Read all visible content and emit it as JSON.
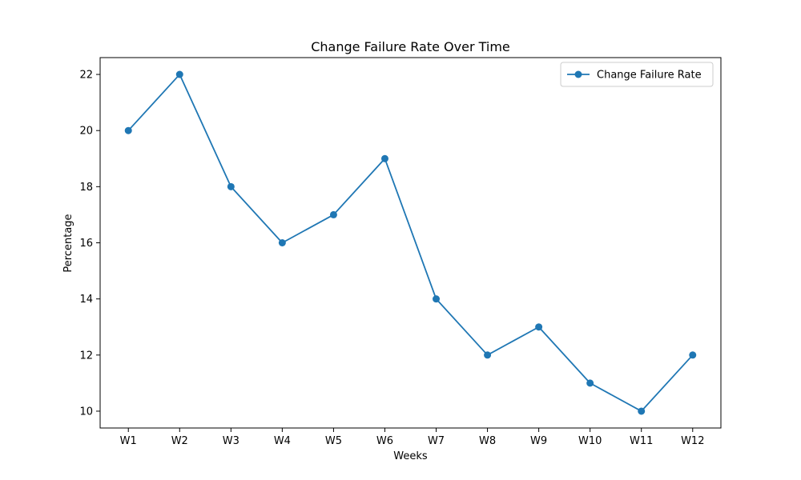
{
  "chart_data": {
    "type": "line",
    "title": "Change Failure Rate Over Time",
    "xlabel": "Weeks",
    "ylabel": "Percentage",
    "categories": [
      "W1",
      "W2",
      "W3",
      "W4",
      "W5",
      "W6",
      "W7",
      "W8",
      "W9",
      "W10",
      "W11",
      "W12"
    ],
    "series": [
      {
        "name": "Change Failure Rate",
        "values": [
          20,
          22,
          18,
          16,
          17,
          19,
          14,
          12,
          13,
          11,
          10,
          12
        ],
        "color": "#1f77b4",
        "marker": "circle"
      }
    ],
    "ylim": [
      9.4,
      22.6
    ],
    "yticks": [
      10,
      12,
      14,
      16,
      18,
      20,
      22
    ],
    "grid": false,
    "legend": "upper-right"
  }
}
